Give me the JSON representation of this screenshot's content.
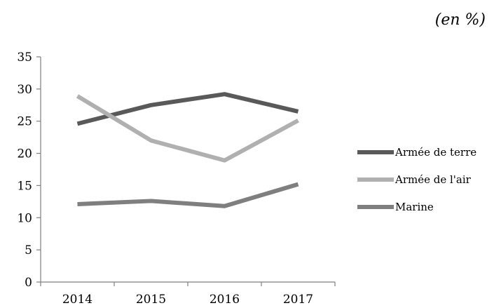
{
  "unit_note": "(en %)",
  "chart_data": {
    "type": "line",
    "categories": [
      "2014",
      "2015",
      "2016",
      "2017"
    ],
    "series": [
      {
        "name": "Armée de terre",
        "values": [
          24.6,
          27.5,
          29.2,
          26.5
        ],
        "color": "#595959"
      },
      {
        "name": "Armée de l'air",
        "values": [
          28.9,
          22.0,
          18.9,
          25.1
        ],
        "color": "#b0b0b0"
      },
      {
        "name": "Marine",
        "values": [
          12.1,
          12.6,
          11.8,
          15.2
        ],
        "color": "#7f7f7f"
      }
    ],
    "y_ticks": [
      "0",
      "5",
      "10",
      "15",
      "20",
      "25",
      "30",
      "35"
    ],
    "ylim": [
      0,
      35
    ],
    "grid": false,
    "legend_position": "right"
  }
}
